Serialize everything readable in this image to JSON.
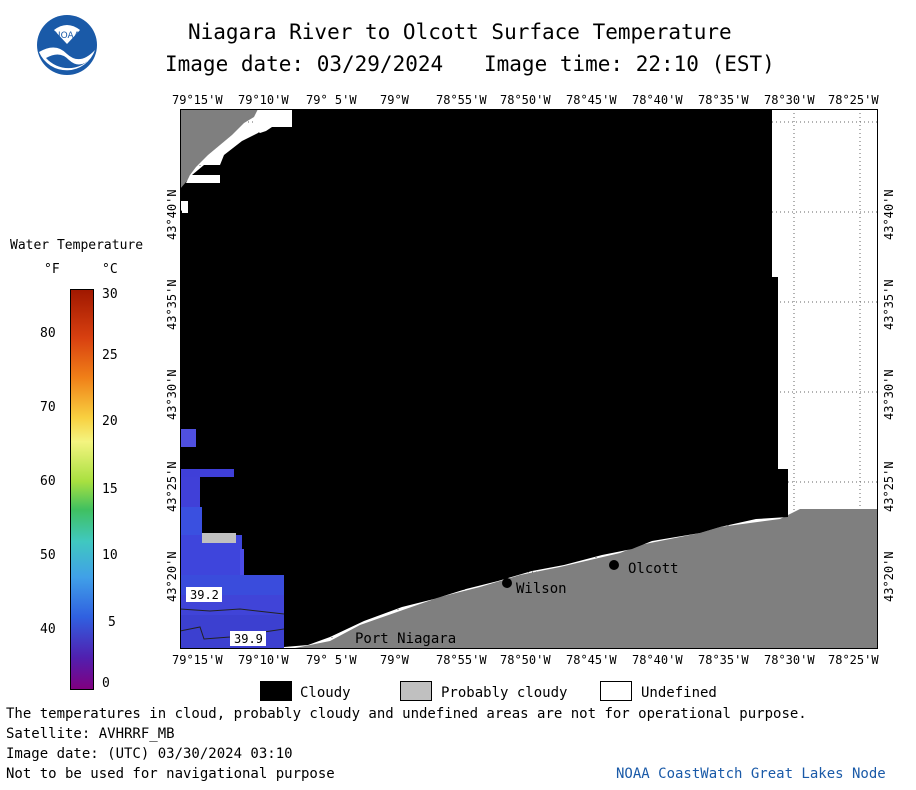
{
  "header": {
    "title": "Niagara River to Olcott Surface Temperature",
    "image_date": "Image date: 03/29/2024",
    "image_time": "Image time: 22:10 (EST)"
  },
  "logo": {
    "text": "NOAA",
    "color": "#1a5aa8"
  },
  "longitude_labels": [
    "79°15'W",
    "79°10'W",
    "79° 5'W",
    "79°W",
    "78°55'W",
    "78°50'W",
    "78°45'W",
    "78°40'W",
    "78°35'W",
    "78°30'W",
    "78°25'W"
  ],
  "latitude_labels": [
    "43°40'N",
    "43°35'N",
    "43°30'N",
    "43°25'N",
    "43°20'N"
  ],
  "colorbar": {
    "title": "Water Temperature",
    "unit_f": "°F",
    "unit_c": "°C",
    "f_ticks": [
      "80",
      "70",
      "60",
      "50",
      "40"
    ],
    "c_ticks": [
      "30",
      "25",
      "20",
      "15",
      "10",
      "5",
      "0"
    ]
  },
  "places": {
    "olcott": "Olcott",
    "wilson": "Wilson",
    "port_niagara": "Port Niagara"
  },
  "temp_labels": {
    "a": "39.2",
    "b": "39.9"
  },
  "legend": {
    "cloudy": "Cloudy",
    "probably_cloudy": "Probably cloudy",
    "undefined": "Undefined"
  },
  "footer": {
    "disclaimer": "The temperatures in cloud, probably cloudy and undefined areas are not for operational purpose.",
    "satellite": "Satellite: AVHRRF_MB",
    "utc_date": "Image date: (UTC) 03/30/2024  03:10",
    "navigation": "Not to be used for navigational purpose",
    "credit": "NOAA CoastWatch Great Lakes Node"
  },
  "colors": {
    "cloud": "#000000",
    "land": "#7f7f7f",
    "probably_cloudy": "#c0c0c0",
    "credit": "#1a5aa8"
  }
}
